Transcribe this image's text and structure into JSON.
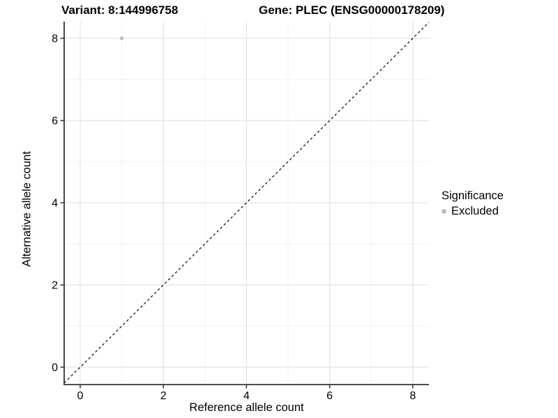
{
  "header": {
    "variant_title": "Variant: 8:144996758",
    "gene_title": "Gene: PLEC (ENSG00000178209)"
  },
  "chart_data": {
    "type": "scatter",
    "title": "Variant: 8:144996758   Gene: PLEC (ENSG00000178209)",
    "xlabel": "Reference allele count",
    "ylabel": "Alternative allele count",
    "x_ticks": [
      0,
      2,
      4,
      6,
      8
    ],
    "y_ticks": [
      0,
      2,
      4,
      6,
      8
    ],
    "xlim": [
      -0.4,
      8.4
    ],
    "ylim": [
      -0.4,
      8.4
    ],
    "grid": "major-and-minor",
    "points": [
      {
        "x": 1,
        "y": 8,
        "series": "Excluded"
      }
    ],
    "reference_line": {
      "type": "abline",
      "slope": 1,
      "intercept": 0,
      "style": "dashed",
      "color": "#000000"
    },
    "legend": {
      "title": "Significance",
      "position": "right",
      "items": [
        {
          "label": "Excluded",
          "color": "#bdbdbd"
        }
      ]
    }
  },
  "colors": {
    "background": "#ffffff",
    "point": "#bdbdbd",
    "grid_major": "#e3e3e3",
    "grid_minor": "#eeeeee",
    "axis_line": "#333333",
    "text": "#000000"
  }
}
